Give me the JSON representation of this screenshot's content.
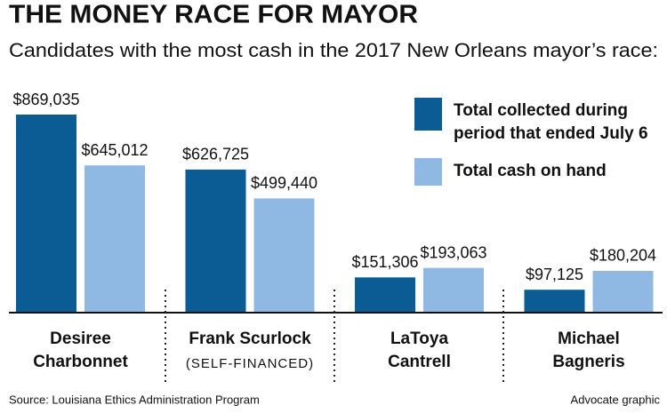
{
  "chart_data": {
    "type": "bar",
    "title": "THE MONEY RACE FOR MAYOR",
    "subtitle": "Candidates with the most cash in the 2017 New Orleans mayor’s race:",
    "categories": [
      [
        "Desiree",
        "Charbonnet"
      ],
      [
        "Frank Scurlock"
      ],
      [
        "LaToya",
        "Cantrell"
      ],
      [
        "Michael",
        "Bagneris"
      ]
    ],
    "annotations": [
      {
        "category": 1,
        "text": "(SELF-FINANCED)"
      }
    ],
    "series": [
      {
        "name": [
          "Total collected during",
          "period that ended July 6"
        ],
        "color": "#0b5b95",
        "values": [
          869035,
          626725,
          151306,
          97125
        ],
        "value_labels": [
          "$869,035",
          "$626,725",
          "$151,306",
          "$97,125"
        ]
      },
      {
        "name": [
          "Total cash on hand"
        ],
        "color": "#8fb8e2",
        "values": [
          645012,
          499440,
          193063,
          180204
        ],
        "value_labels": [
          "$645,012",
          "$499,440",
          "$193,063",
          "$180,204"
        ]
      }
    ],
    "source": "Source: Louisiana Ethics Administration Program",
    "credit": "Advocate graphic"
  }
}
